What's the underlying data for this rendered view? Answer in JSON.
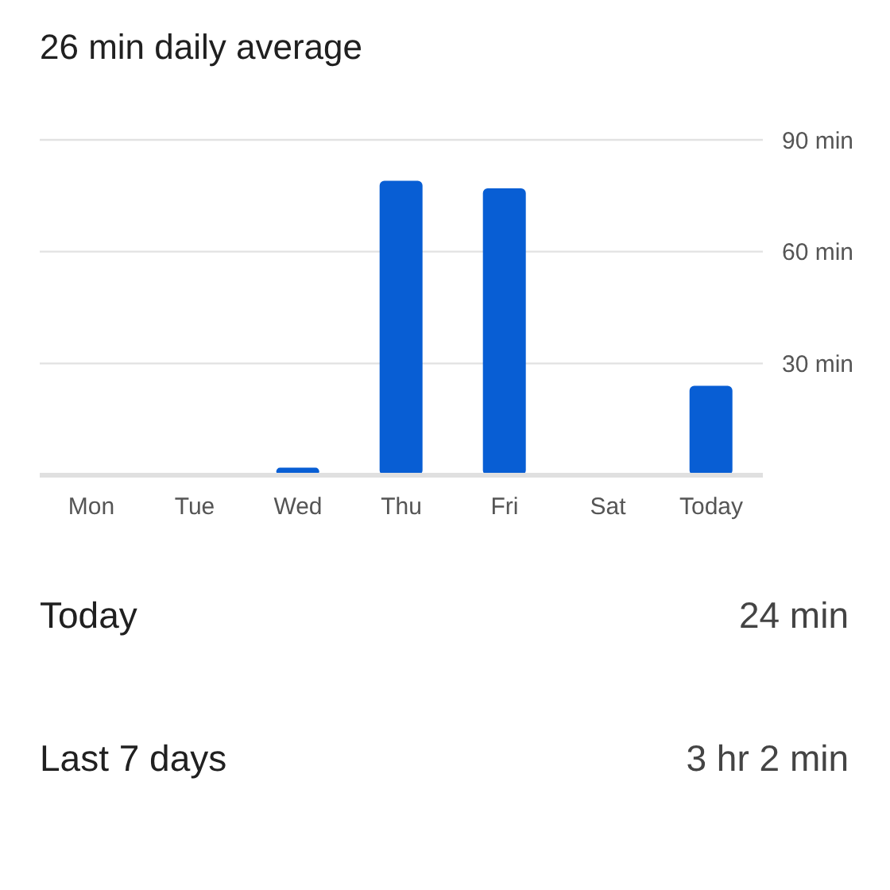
{
  "chart_data": {
    "type": "bar",
    "title": "26 min daily average",
    "categories": [
      "Mon",
      "Tue",
      "Wed",
      "Thu",
      "Fri",
      "Sat",
      "Today"
    ],
    "values": [
      0,
      0,
      2,
      79,
      77,
      0,
      24
    ],
    "color": "#085ed4",
    "ylim": [
      0,
      90
    ],
    "yticks": [
      {
        "value": 30,
        "label": "30 min"
      },
      {
        "value": 60,
        "label": "60 min"
      },
      {
        "value": 90,
        "label": "90 min"
      }
    ],
    "grid": "y",
    "annotations": [
      "Today",
      "24 min",
      "Last 7 days",
      "3 hr 2 min"
    ]
  }
}
